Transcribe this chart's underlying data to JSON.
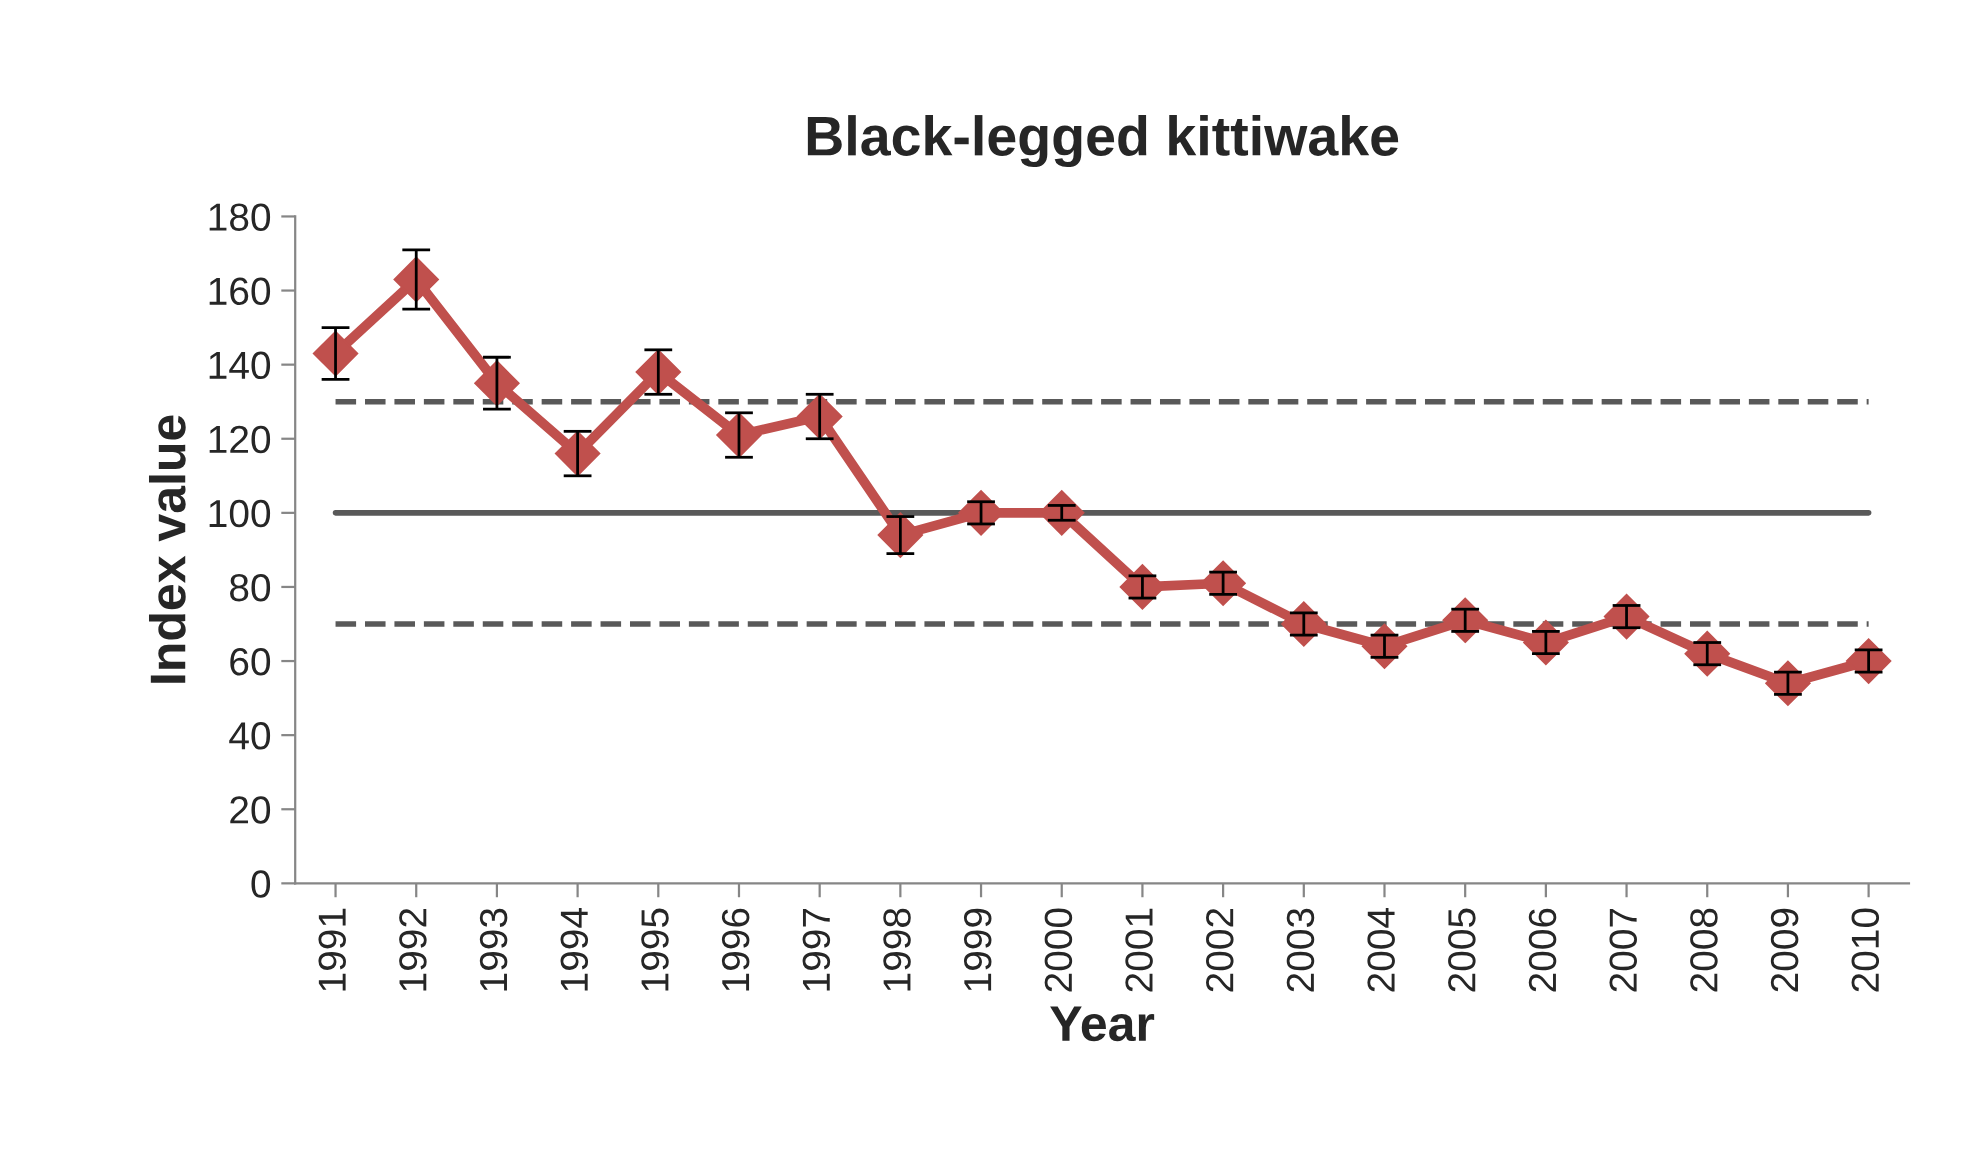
{
  "chart_data": {
    "type": "line",
    "title": "Black-legged kittiwake",
    "xlabel": "Year",
    "ylabel": "Index value",
    "categories": [
      "1991",
      "1992",
      "1993",
      "1994",
      "1995",
      "1996",
      "1997",
      "1998",
      "1999",
      "2000",
      "2001",
      "2002",
      "2003",
      "2004",
      "2005",
      "2006",
      "2007",
      "2008",
      "2009",
      "2010"
    ],
    "series": [
      {
        "color": "#c0504d",
        "values": [
          143,
          163,
          135,
          116,
          138,
          121,
          126,
          94,
          100,
          100,
          80,
          81,
          70,
          64,
          71,
          65,
          72,
          62,
          54,
          60
        ],
        "errors": [
          7,
          8,
          7,
          6,
          6,
          6,
          6,
          5,
          3,
          2,
          3,
          3,
          3,
          3,
          3,
          3,
          3,
          3,
          3,
          3
        ]
      }
    ],
    "ylim": [
      0,
      180
    ],
    "yticks": [
      0,
      20,
      40,
      60,
      80,
      100,
      120,
      140,
      160,
      180
    ],
    "ref_lines": [
      {
        "axis": "y",
        "value": 130,
        "color": "#595959",
        "line_style": "dashed"
      },
      {
        "axis": "y",
        "value": 100,
        "color": "#595959",
        "line_style": "solid"
      },
      {
        "axis": "y",
        "value": 70,
        "color": "#595959",
        "line_style": "dashed"
      }
    ],
    "marker": "diamond",
    "line_style": "solid",
    "grid": false,
    "legend": false
  }
}
